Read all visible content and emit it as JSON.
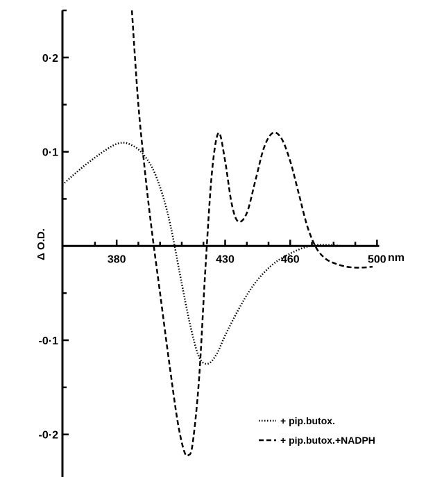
{
  "chart_data": {
    "type": "line",
    "xlabel": "",
    "ylabel": "Δ O.D.",
    "x_unit": "nm",
    "x_ticks": [
      {
        "value": 380,
        "label": "380"
      },
      {
        "value": 430,
        "label": "430"
      },
      {
        "value": 460,
        "label": "460"
      },
      {
        "value": 500,
        "label": "500"
      }
    ],
    "y_ticks": [
      {
        "value": 0.2,
        "label": "0·2"
      },
      {
        "value": 0.1,
        "label": "0·1"
      },
      {
        "value": -0.1,
        "label": "-0·1"
      },
      {
        "value": -0.2,
        "label": "-0·2"
      }
    ],
    "xlim": [
      355,
      505
    ],
    "ylim": [
      -0.24,
      0.25
    ],
    "grid": false,
    "legend_position": "bottom-right",
    "series": [
      {
        "name": "+ pip.butox.",
        "line_style": "dotted",
        "x": [
          355,
          365,
          375,
          381,
          386,
          392,
          398,
          404,
          410,
          414,
          418,
          422,
          426,
          430,
          436,
          442,
          448,
          454,
          460,
          466,
          472,
          478,
          484
        ],
        "y": [
          0.065,
          0.085,
          0.102,
          0.109,
          0.108,
          0.098,
          0.075,
          0.03,
          -0.04,
          -0.085,
          -0.118,
          -0.125,
          -0.115,
          -0.095,
          -0.068,
          -0.045,
          -0.028,
          -0.016,
          -0.008,
          -0.002,
          0.001,
          0.001,
          0.0
        ]
      },
      {
        "name": "+ pip.butox.+NADPH",
        "line_style": "dashed",
        "x": [
          387,
          390,
          393,
          396,
          400,
          404,
          408,
          411,
          413,
          415,
          418,
          421,
          424,
          427,
          430,
          433,
          436,
          440,
          444,
          448,
          452,
          456,
          460,
          464,
          468,
          472,
          476,
          480,
          486,
          492,
          498
        ],
        "y": [
          0.25,
          0.15,
          0.08,
          0.02,
          -0.05,
          -0.12,
          -0.185,
          -0.217,
          -0.222,
          -0.21,
          -0.14,
          -0.02,
          0.08,
          0.12,
          0.09,
          0.045,
          0.026,
          0.035,
          0.07,
          0.105,
          0.12,
          0.114,
          0.09,
          0.055,
          0.02,
          -0.002,
          -0.013,
          -0.018,
          -0.022,
          -0.023,
          -0.022
        ]
      }
    ]
  }
}
